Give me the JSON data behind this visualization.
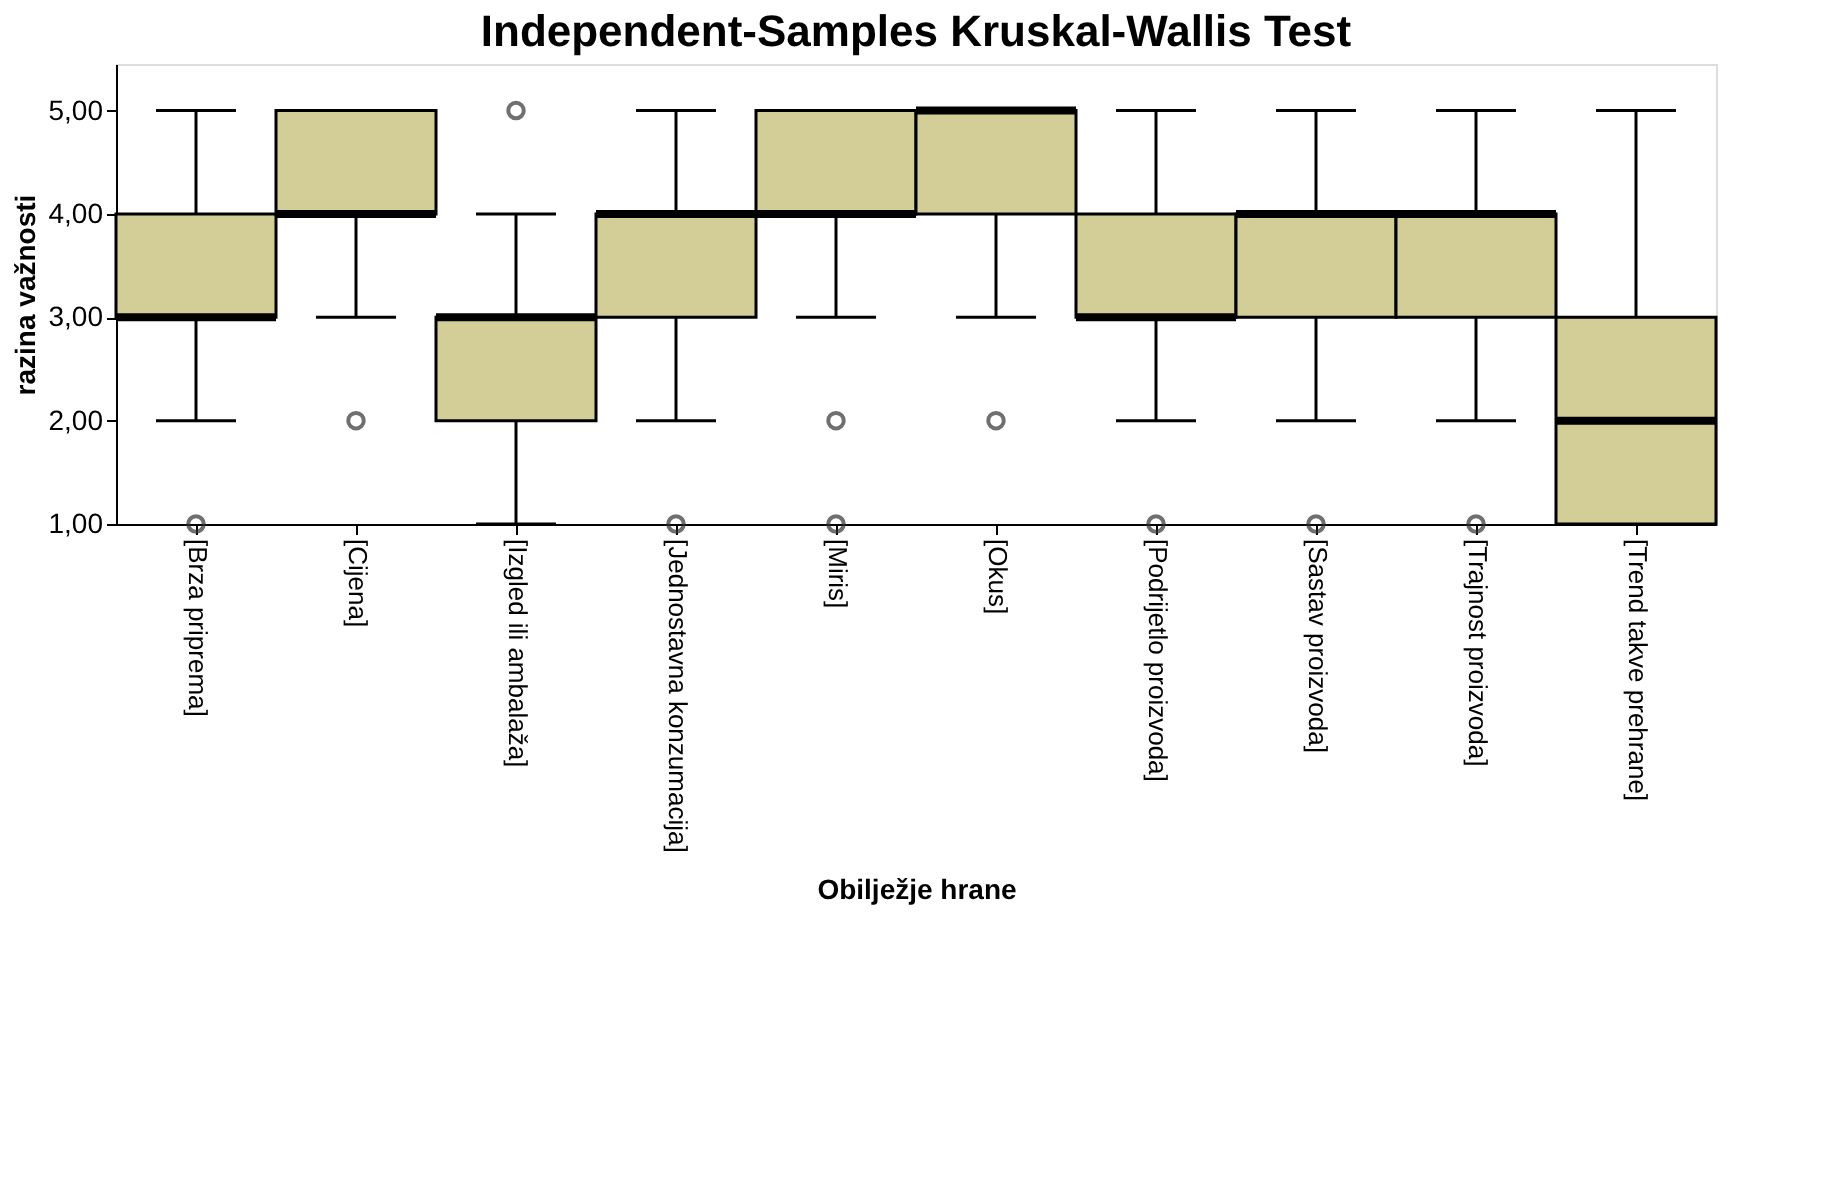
{
  "chart_data": {
    "type": "box",
    "title": "Independent-Samples Kruskal-Wallis Test",
    "xlabel": "Obilježje hrane",
    "ylabel": "razina važnosti",
    "categories": [
      "[Brza priprema]",
      "[Cijena]",
      "[Izgled ili ambalaža]",
      "[Jednostavna konzumacija]",
      "[Miris]",
      "[Okus]",
      "[Podrijetlo proizvoda]",
      "[Sastav proizvoda]",
      "[Trajnost proizvoda]",
      "[Trend takve prehrane]"
    ],
    "ylim": [
      1,
      5.45
    ],
    "yticks": [
      {
        "value": 1,
        "label": "1,00"
      },
      {
        "value": 2,
        "label": "2,00"
      },
      {
        "value": 3,
        "label": "3,00"
      },
      {
        "value": 4,
        "label": "4,00"
      },
      {
        "value": 5,
        "label": "5,00"
      }
    ],
    "grid": false,
    "series": [
      {
        "color": "#d3ce98",
        "boxes": [
          {
            "low": 2,
            "q1": 3,
            "median": 3,
            "q3": 4,
            "high": 5,
            "outliers": [
              1
            ]
          },
          {
            "low": 3,
            "q1": 4,
            "median": 4,
            "q3": 5,
            "high": 5,
            "outliers": [
              2
            ]
          },
          {
            "low": 1,
            "q1": 2,
            "median": 3,
            "q3": 3,
            "high": 4,
            "outliers": [
              5
            ]
          },
          {
            "low": 2,
            "q1": 3,
            "median": 4,
            "q3": 4,
            "high": 5,
            "outliers": [
              1
            ]
          },
          {
            "low": 3,
            "q1": 4,
            "median": 4,
            "q3": 5,
            "high": 5,
            "outliers": [
              2,
              1
            ]
          },
          {
            "low": 3,
            "q1": 4,
            "median": 5,
            "q3": 5,
            "high": 5,
            "outliers": [
              2
            ]
          },
          {
            "low": 2,
            "q1": 3,
            "median": 3,
            "q3": 4,
            "high": 5,
            "outliers": [
              1
            ]
          },
          {
            "low": 2,
            "q1": 3,
            "median": 4,
            "q3": 4,
            "high": 5,
            "outliers": [
              1
            ]
          },
          {
            "low": 2,
            "q1": 3,
            "median": 4,
            "q3": 4,
            "high": 5,
            "outliers": [
              1
            ]
          },
          {
            "low": 1,
            "q1": 1,
            "median": 2,
            "q3": 3,
            "high": 5
          }
        ]
      }
    ]
  }
}
